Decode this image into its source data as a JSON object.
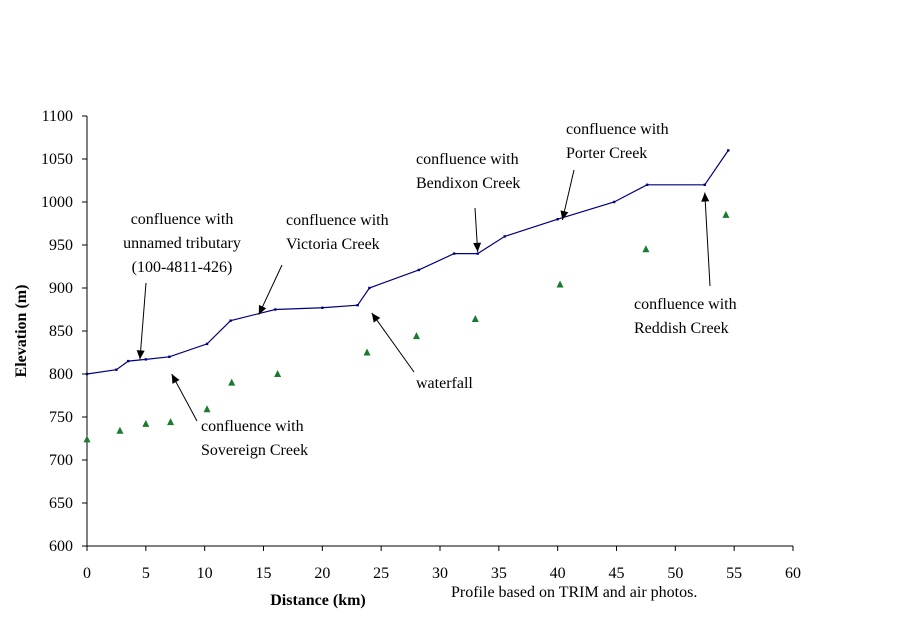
{
  "chart_data": {
    "type": "line",
    "title": "",
    "xlabel": "Distance (km)",
    "ylabel": "Elevation (m)",
    "xlim": [
      0,
      60
    ],
    "ylim": [
      600,
      1100
    ],
    "xticks": [
      "0",
      "5",
      "10",
      "15",
      "20",
      "25",
      "30",
      "35",
      "40",
      "45",
      "50",
      "55",
      "60"
    ],
    "yticks": [
      "600",
      "650",
      "700",
      "750",
      "800",
      "850",
      "900",
      "950",
      "1000",
      "1050",
      "1100"
    ],
    "grid": false,
    "legend": "none",
    "note": "Profile based on TRIM and air photos.",
    "series": [
      {
        "kind": "line",
        "color": "#000080",
        "points": [
          [
            0,
            800
          ],
          [
            2.5,
            805
          ],
          [
            3.5,
            815
          ],
          [
            5,
            817
          ],
          [
            7,
            820
          ],
          [
            10.2,
            835
          ],
          [
            12.2,
            862
          ],
          [
            16,
            875
          ],
          [
            20,
            877
          ],
          [
            23,
            880
          ],
          [
            24,
            900
          ],
          [
            28.2,
            921
          ],
          [
            31.2,
            940
          ],
          [
            33.2,
            940
          ],
          [
            35.5,
            960
          ],
          [
            40,
            980
          ],
          [
            44.8,
            1000
          ],
          [
            47.6,
            1020
          ],
          [
            52.5,
            1020
          ],
          [
            54.5,
            1060
          ]
        ]
      },
      {
        "kind": "scatter",
        "color": "#1a7a2e",
        "marker": "triangle",
        "points": [
          [
            0,
            724
          ],
          [
            2.8,
            734
          ],
          [
            5,
            742
          ],
          [
            7.1,
            744
          ],
          [
            10.2,
            759
          ],
          [
            12.3,
            790
          ],
          [
            16.2,
            800
          ],
          [
            23.8,
            825
          ],
          [
            28,
            844
          ],
          [
            33,
            864
          ],
          [
            40.2,
            904
          ],
          [
            47.5,
            945
          ],
          [
            54.3,
            985
          ]
        ]
      }
    ],
    "annotations": [
      {
        "lines": [
          "confluence with",
          "unnamed tributary",
          "(100-4811-426)"
        ],
        "arrow_tip": [
          4.5,
          817
        ]
      },
      {
        "lines": [
          "confluence with",
          "Sovereign Creek"
        ],
        "arrow_tip": [
          7.2,
          800
        ]
      },
      {
        "lines": [
          "confluence with",
          "Victoria Creek"
        ],
        "arrow_tip": [
          14.6,
          869
        ]
      },
      {
        "lines": [
          "waterfall"
        ],
        "arrow_tip": [
          24.2,
          871
        ]
      },
      {
        "lines": [
          "confluence with",
          "Bendixon Creek"
        ],
        "arrow_tip": [
          33.2,
          942
        ]
      },
      {
        "lines": [
          "confluence with",
          "Porter Creek"
        ],
        "arrow_tip": [
          40.4,
          979
        ]
      },
      {
        "lines": [
          "confluence with",
          "Reddish Creek"
        ],
        "arrow_tip": [
          52.5,
          1011
        ]
      }
    ]
  }
}
